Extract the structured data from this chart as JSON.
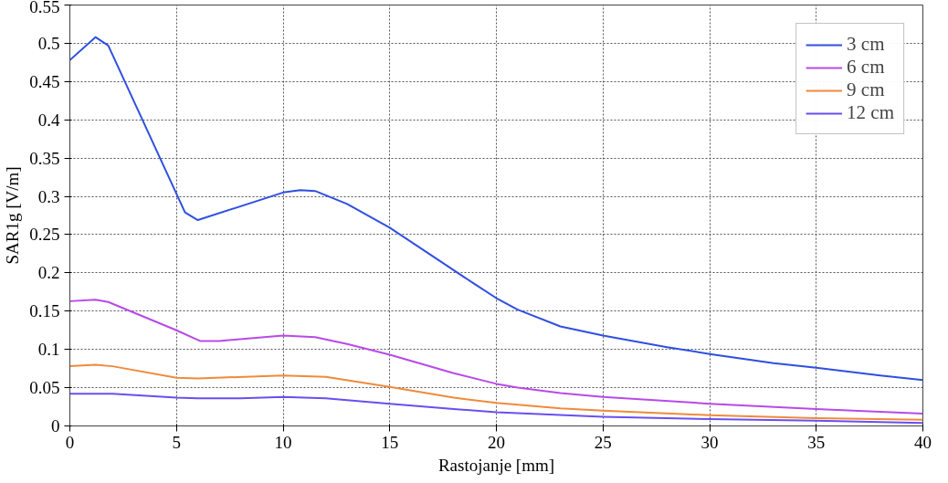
{
  "chart_data": {
    "type": "line",
    "xlabel": "Rastojanje [mm]",
    "ylabel": "SAR1g [V/m]",
    "xlim": [
      0,
      40
    ],
    "xticks": [
      0,
      5,
      10,
      15,
      20,
      25,
      30,
      35,
      40
    ],
    "ylim": [
      0,
      0.55
    ],
    "yticks": [
      0,
      0.05,
      0.1,
      0.15,
      0.2,
      0.25,
      0.3,
      0.35,
      0.4,
      0.45,
      0.5,
      0.55
    ],
    "grid": true,
    "legend": "top right",
    "series": [
      {
        "name": "3 cm",
        "color": "#2f4fe0",
        "x": [
          0,
          1.2,
          1.8,
          5.4,
          6,
          10,
          10.8,
          11.5,
          13,
          15,
          17,
          19,
          20,
          21,
          23,
          25,
          28,
          30,
          33,
          35,
          38,
          40
        ],
        "values": [
          0.478,
          0.508,
          0.497,
          0.279,
          0.269,
          0.305,
          0.308,
          0.307,
          0.29,
          0.259,
          0.222,
          0.185,
          0.167,
          0.152,
          0.13,
          0.118,
          0.103,
          0.094,
          0.082,
          0.076,
          0.066,
          0.06
        ]
      },
      {
        "name": "6 cm",
        "color": "#b84ae8",
        "x": [
          0,
          1.2,
          1.8,
          5,
          6.1,
          7,
          10,
          11.5,
          13,
          15,
          18,
          20,
          21,
          23,
          25,
          30,
          35,
          40
        ],
        "values": [
          0.163,
          0.165,
          0.162,
          0.125,
          0.111,
          0.111,
          0.118,
          0.116,
          0.107,
          0.093,
          0.069,
          0.055,
          0.05,
          0.043,
          0.038,
          0.029,
          0.022,
          0.016
        ]
      },
      {
        "name": "9 cm",
        "color": "#f08a3c",
        "x": [
          0,
          1.2,
          2,
          5,
          6,
          10,
          12,
          15,
          18,
          20,
          23,
          25,
          30,
          35,
          40
        ],
        "values": [
          0.078,
          0.08,
          0.078,
          0.063,
          0.062,
          0.066,
          0.064,
          0.051,
          0.037,
          0.03,
          0.023,
          0.02,
          0.014,
          0.01,
          0.008
        ]
      },
      {
        "name": "12 cm",
        "color": "#6a4ef0",
        "x": [
          0,
          2,
          5,
          6,
          8,
          10,
          12,
          15,
          18,
          20,
          25,
          30,
          35,
          40
        ],
        "values": [
          0.042,
          0.042,
          0.037,
          0.036,
          0.036,
          0.038,
          0.036,
          0.029,
          0.022,
          0.018,
          0.012,
          0.009,
          0.007,
          0.004
        ]
      }
    ]
  }
}
